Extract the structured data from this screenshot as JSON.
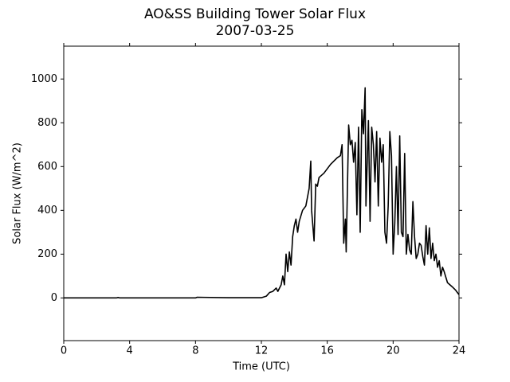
{
  "chart_data": {
    "type": "line",
    "title": "AO&SS Building Tower Solar Flux",
    "subtitle": "2007-03-25",
    "x_label": "Time (UTC)",
    "y_label": "Solar Flux (W/m^2)",
    "xlim": [
      0,
      24
    ],
    "xticks": [
      0,
      4,
      8,
      12,
      16,
      20,
      24
    ],
    "ylim": [
      -195,
      1150
    ],
    "yticks": [
      0,
      200,
      400,
      600,
      800,
      1000
    ],
    "grid": false,
    "series": [
      {
        "color": "#000000",
        "x": [
          0,
          3.2,
          3.3,
          3.4,
          8,
          8.1,
          10,
          12,
          12.3,
          12.5,
          12.7,
          12.9,
          13.0,
          13.2,
          13.3,
          13.4,
          13.5,
          13.6,
          13.7,
          13.8,
          13.9,
          14.0,
          14.1,
          14.2,
          14.3,
          14.5,
          14.7,
          14.9,
          15.0,
          15.05,
          15.2,
          15.3,
          15.4,
          15.5,
          15.8,
          16.2,
          16.6,
          16.8,
          16.9,
          17.0,
          17.1,
          17.15,
          17.3,
          17.4,
          17.5,
          17.6,
          17.7,
          17.8,
          17.9,
          18.0,
          18.1,
          18.2,
          18.3,
          18.35,
          18.5,
          18.6,
          18.7,
          18.8,
          18.9,
          19.0,
          19.1,
          19.2,
          19.3,
          19.4,
          19.5,
          19.6,
          19.7,
          19.8,
          19.9,
          20.0,
          20.1,
          20.2,
          20.3,
          20.4,
          20.5,
          20.6,
          20.7,
          20.8,
          20.9,
          21.0,
          21.1,
          21.2,
          21.3,
          21.4,
          21.5,
          21.6,
          21.7,
          21.8,
          21.9,
          22.0,
          22.1,
          22.2,
          22.3,
          22.4,
          22.5,
          22.6,
          22.7,
          22.8,
          22.9,
          23.0,
          23.1,
          23.3,
          23.6,
          23.8,
          24.0
        ],
        "values": [
          0,
          0,
          2,
          0,
          0,
          3,
          1,
          1,
          8,
          25,
          30,
          45,
          30,
          60,
          100,
          60,
          200,
          120,
          210,
          150,
          280,
          330,
          360,
          300,
          350,
          400,
          420,
          500,
          625,
          400,
          260,
          520,
          510,
          550,
          570,
          610,
          640,
          650,
          700,
          250,
          360,
          210,
          790,
          700,
          720,
          620,
          710,
          380,
          780,
          300,
          860,
          750,
          960,
          420,
          810,
          350,
          780,
          700,
          530,
          760,
          420,
          730,
          620,
          700,
          300,
          250,
          420,
          760,
          650,
          200,
          340,
          600,
          290,
          740,
          300,
          280,
          660,
          200,
          290,
          220,
          200,
          440,
          280,
          180,
          200,
          250,
          240,
          190,
          150,
          330,
          200,
          320,
          180,
          250,
          170,
          200,
          140,
          170,
          100,
          140,
          120,
          70,
          50,
          35,
          15
        ]
      }
    ]
  }
}
